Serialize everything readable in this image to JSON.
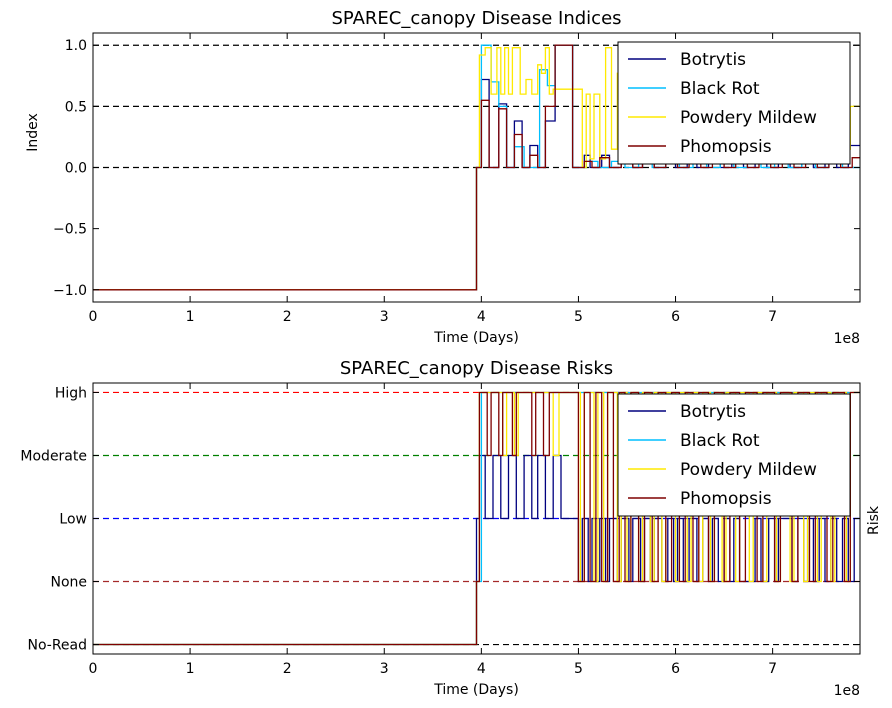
{
  "chart_data": [
    {
      "type": "line",
      "step": true,
      "title": "SPAREC_canopy Disease Indices",
      "xlabel": "Time (Days)",
      "ylabel": "Index",
      "xlim": [
        0,
        790000000
      ],
      "ylim": [
        -1.1,
        1.1
      ],
      "x_ticks": [
        0,
        100000000,
        200000000,
        300000000,
        400000000,
        500000000,
        600000000,
        700000000
      ],
      "x_tick_labels": [
        "0",
        "1",
        "2",
        "3",
        "4",
        "5",
        "6",
        "7"
      ],
      "x_offset_label": "1e8",
      "y_ticks": [
        -1.0,
        -0.5,
        0.0,
        0.5,
        1.0
      ],
      "y_tick_labels": [
        "−1.0",
        "−0.5",
        "0.0",
        "0.5",
        "1.0"
      ],
      "reference_lines": [
        {
          "y": 1.0,
          "color": "#000000"
        },
        {
          "y": 0.5,
          "color": "#000000"
        },
        {
          "y": 0.0,
          "color": "#000000"
        }
      ],
      "legend_position": "upper-right",
      "series": [
        {
          "name": "Botrytis",
          "color": "#00007f",
          "x": [
            0,
            395000000,
            400000000,
            408000000,
            418000000,
            426000000,
            434000000,
            442000000,
            450000000,
            458000000,
            466000000,
            476000000,
            494000000,
            506000000,
            512000000,
            524000000,
            532000000,
            544000000,
            556000000,
            566000000,
            578000000,
            590000000,
            600000000,
            612000000,
            622000000,
            634000000,
            646000000,
            658000000,
            670000000,
            682000000,
            694000000,
            706000000,
            718000000,
            730000000,
            742000000,
            754000000,
            766000000,
            778000000,
            790000000
          ],
          "y": [
            -1.0,
            0.0,
            0.72,
            0.0,
            0.52,
            0.0,
            0.38,
            0.0,
            0.18,
            0.0,
            0.38,
            1.0,
            0.0,
            0.1,
            0.0,
            0.1,
            0.0,
            0.18,
            0.0,
            0.1,
            0.0,
            0.18,
            0.0,
            0.1,
            0.0,
            0.18,
            0.0,
            0.1,
            0.0,
            0.18,
            0.0,
            0.1,
            0.0,
            0.18,
            0.0,
            0.1,
            0.0,
            0.18,
            0.18
          ]
        },
        {
          "name": "Black Rot",
          "color": "#00bfff",
          "x": [
            0,
            395000000,
            400000000,
            410000000,
            418000000,
            426000000,
            434000000,
            444000000,
            452000000,
            460000000,
            468000000,
            476000000,
            494000000,
            508000000,
            520000000,
            534000000,
            548000000,
            562000000,
            576000000,
            590000000,
            604000000,
            618000000,
            632000000,
            646000000,
            660000000,
            674000000,
            688000000,
            702000000,
            716000000,
            730000000,
            744000000,
            758000000,
            772000000,
            790000000
          ],
          "y": [
            -1.0,
            0.0,
            1.0,
            0.7,
            0.5,
            0.0,
            0.17,
            0.0,
            0.0,
            0.8,
            0.67,
            1.0,
            0.0,
            0.05,
            0.0,
            0.05,
            0.0,
            0.05,
            0.0,
            0.05,
            0.0,
            0.05,
            0.0,
            0.05,
            0.0,
            0.05,
            0.0,
            0.05,
            0.0,
            0.05,
            0.0,
            0.05,
            0.0,
            0.0
          ]
        },
        {
          "name": "Powdery Mildew",
          "color": "#ffea00",
          "x": [
            0,
            395000000,
            398000000,
            404000000,
            410000000,
            416000000,
            420000000,
            424000000,
            428000000,
            432000000,
            440000000,
            446000000,
            452000000,
            458000000,
            462000000,
            466000000,
            470000000,
            474000000,
            504000000,
            508000000,
            512000000,
            516000000,
            522000000,
            528000000,
            534000000,
            540000000,
            548000000,
            556000000,
            562000000,
            570000000,
            578000000,
            588000000,
            596000000,
            606000000,
            614000000,
            624000000,
            632000000,
            640000000,
            650000000,
            660000000,
            670000000,
            680000000,
            690000000,
            700000000,
            710000000,
            720000000,
            730000000,
            740000000,
            750000000,
            760000000,
            770000000,
            780000000,
            790000000
          ],
          "y": [
            -1.0,
            0.0,
            0.92,
            0.98,
            0.6,
            0.98,
            0.6,
            0.98,
            0.6,
            0.98,
            0.6,
            0.72,
            0.6,
            0.84,
            0.77,
            0.98,
            0.6,
            0.64,
            0.0,
            0.6,
            0.07,
            0.6,
            0.07,
            0.98,
            0.15,
            0.77,
            0.07,
            0.98,
            0.2,
            0.98,
            0.15,
            0.98,
            0.2,
            0.98,
            0.15,
            0.9,
            0.2,
            0.98,
            0.15,
            0.9,
            0.2,
            0.98,
            0.15,
            0.9,
            0.2,
            0.98,
            0.15,
            0.9,
            0.2,
            0.98,
            0.15,
            0.5,
            0.5
          ]
        },
        {
          "name": "Phomopsis",
          "color": "#7f0000",
          "x": [
            0,
            395000000,
            400000000,
            408000000,
            418000000,
            426000000,
            434000000,
            442000000,
            450000000,
            458000000,
            466000000,
            476000000,
            494000000,
            506000000,
            514000000,
            522000000,
            532000000,
            544000000,
            556000000,
            566000000,
            578000000,
            590000000,
            602000000,
            614000000,
            626000000,
            638000000,
            650000000,
            662000000,
            674000000,
            686000000,
            698000000,
            710000000,
            722000000,
            734000000,
            746000000,
            758000000,
            770000000,
            782000000,
            790000000
          ],
          "y": [
            -1.0,
            0.0,
            0.55,
            0.0,
            0.48,
            0.0,
            0.27,
            0.0,
            0.1,
            0.0,
            0.5,
            1.0,
            0.0,
            0.05,
            0.0,
            0.08,
            0.0,
            0.08,
            0.0,
            0.08,
            0.0,
            0.08,
            0.0,
            0.08,
            0.0,
            0.08,
            0.0,
            0.08,
            0.0,
            0.08,
            0.0,
            0.08,
            0.0,
            0.08,
            0.0,
            0.08,
            0.0,
            0.08,
            0.08
          ]
        }
      ]
    },
    {
      "type": "line",
      "step": true,
      "title": "SPAREC_canopy Disease Risks",
      "xlabel": "Time (Days)",
      "ylabel": "Risk",
      "xlim": [
        0,
        790000000
      ],
      "ylim": [
        -0.15,
        4.15
      ],
      "x_ticks": [
        0,
        100000000,
        200000000,
        300000000,
        400000000,
        500000000,
        600000000,
        700000000
      ],
      "x_tick_labels": [
        "0",
        "1",
        "2",
        "3",
        "4",
        "5",
        "6",
        "7"
      ],
      "x_offset_label": "1e8",
      "y_ticks": [
        0,
        1,
        2,
        3,
        4
      ],
      "y_tick_labels": [
        "No-Read",
        "None",
        "Low",
        "Moderate",
        "High"
      ],
      "reference_lines": [
        {
          "y": 4,
          "color": "#ff0000"
        },
        {
          "y": 3,
          "color": "#008000"
        },
        {
          "y": 2,
          "color": "#0000ff"
        },
        {
          "y": 1,
          "color": "#a52a2a"
        },
        {
          "y": 0,
          "color": "#000000"
        }
      ],
      "legend_position": "upper-right",
      "series": [
        {
          "name": "Botrytis",
          "color": "#00007f",
          "x": [
            0,
            395000000,
            398000000,
            404000000,
            412000000,
            420000000,
            428000000,
            436000000,
            444000000,
            452000000,
            458000000,
            466000000,
            474000000,
            482000000,
            500000000,
            504000000,
            510000000,
            514000000,
            518000000,
            522000000,
            528000000,
            532000000,
            540000000,
            544000000,
            552000000,
            556000000,
            564000000,
            568000000,
            574000000,
            578000000,
            586000000,
            592000000,
            598000000,
            602000000,
            608000000,
            614000000,
            622000000,
            628000000,
            634000000,
            638000000,
            644000000,
            650000000,
            656000000,
            660000000,
            666000000,
            682000000,
            688000000,
            696000000,
            702000000,
            706000000,
            720000000,
            726000000,
            732000000,
            736000000,
            742000000,
            748000000,
            754000000,
            760000000,
            766000000,
            772000000,
            778000000,
            784000000,
            790000000
          ],
          "y": [
            0,
            2,
            3,
            2,
            3,
            2,
            3,
            2,
            3,
            2,
            3,
            2,
            3,
            2,
            1,
            2,
            1,
            2,
            1,
            2,
            1,
            2,
            1,
            2,
            1,
            2,
            1,
            2,
            1,
            2,
            1,
            2,
            1,
            2,
            1,
            2,
            1,
            2,
            1,
            2,
            1,
            2,
            1,
            2,
            1,
            2,
            1,
            2,
            1,
            2,
            1,
            2,
            1,
            2,
            1,
            2,
            1,
            2,
            1,
            2,
            1,
            2,
            2
          ]
        },
        {
          "name": "Black Rot",
          "color": "#00bfff",
          "x": [
            0,
            395000000,
            400000000,
            790000000
          ],
          "y": [
            0,
            1,
            4,
            4
          ]
        },
        {
          "name": "Powdery Mildew",
          "color": "#ffea00",
          "x": [
            0,
            395000000,
            398000000,
            422000000,
            426000000,
            434000000,
            438000000,
            474000000,
            480000000,
            502000000,
            506000000,
            516000000,
            520000000,
            526000000,
            530000000,
            540000000,
            544000000,
            550000000,
            554000000,
            562000000,
            566000000,
            574000000,
            578000000,
            586000000,
            590000000,
            600000000,
            604000000,
            612000000,
            616000000,
            624000000,
            628000000,
            636000000,
            640000000,
            648000000,
            652000000,
            662000000,
            666000000,
            676000000,
            680000000,
            690000000,
            694000000,
            704000000,
            708000000,
            718000000,
            722000000,
            732000000,
            736000000,
            746000000,
            750000000,
            760000000,
            764000000,
            776000000,
            780000000,
            790000000
          ],
          "y": [
            0,
            1,
            4,
            3,
            4,
            3,
            4,
            3,
            4,
            1,
            4,
            1,
            4,
            1,
            4,
            1,
            4,
            1,
            4,
            1,
            4,
            1,
            4,
            1,
            4,
            1,
            4,
            1,
            4,
            1,
            4,
            1,
            4,
            1,
            4,
            1,
            4,
            1,
            4,
            1,
            4,
            1,
            4,
            1,
            4,
            1,
            4,
            1,
            4,
            1,
            4,
            1,
            4,
            4
          ]
        },
        {
          "name": "Phomopsis",
          "color": "#7f0000",
          "x": [
            0,
            395000000,
            398000000,
            406000000,
            410000000,
            418000000,
            422000000,
            432000000,
            436000000,
            452000000,
            456000000,
            464000000,
            470000000,
            500000000,
            506000000,
            512000000,
            518000000,
            524000000,
            530000000,
            536000000,
            542000000,
            548000000,
            554000000,
            562000000,
            568000000,
            576000000,
            582000000,
            590000000,
            596000000,
            604000000,
            610000000,
            618000000,
            624000000,
            634000000,
            640000000,
            650000000,
            656000000,
            666000000,
            672000000,
            684000000,
            690000000,
            702000000,
            708000000,
            720000000,
            726000000,
            738000000,
            744000000,
            756000000,
            762000000,
            774000000,
            780000000,
            790000000
          ],
          "y": [
            0,
            1,
            4,
            3,
            4,
            3,
            4,
            3,
            4,
            3,
            4,
            3,
            4,
            1,
            4,
            1,
            4,
            1,
            4,
            1,
            4,
            1,
            4,
            1,
            4,
            1,
            4,
            1,
            4,
            1,
            4,
            1,
            4,
            1,
            4,
            1,
            4,
            1,
            4,
            1,
            4,
            1,
            4,
            1,
            4,
            1,
            4,
            1,
            4,
            1,
            4,
            4
          ]
        }
      ]
    }
  ]
}
